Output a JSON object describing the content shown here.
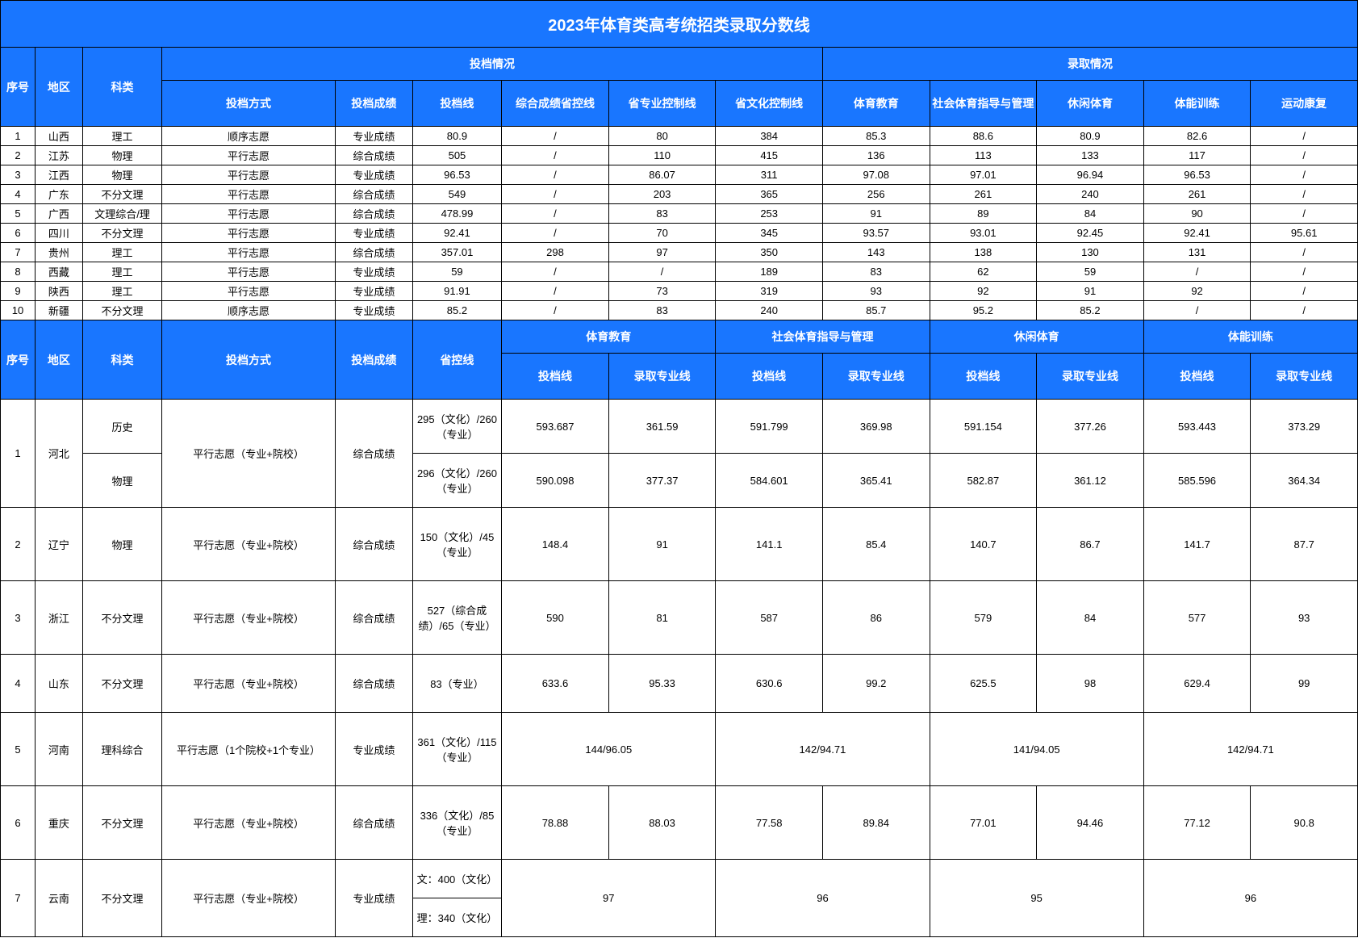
{
  "title": "2023年体育类高考统招类录取分数线",
  "colors": {
    "header_bg": "#1976ff",
    "header_fg": "#ffffff",
    "border": "#000000",
    "cell_bg": "#ffffff",
    "cell_fg": "#000000"
  },
  "section1": {
    "group_left_label": "",
    "group_filing": "投档情况",
    "group_admit": "录取情况",
    "headers": {
      "idx": "序号",
      "region": "地区",
      "subject": "科类",
      "method": "投档方式",
      "score_type": "投档成绩",
      "filing_line": "投档线",
      "comp_ctrl": "综合成绩省控线",
      "pro_ctrl": "省专业控制线",
      "cul_ctrl": "省文化控制线",
      "pe": "体育教育",
      "social": "社会体育指导与管理",
      "leisure": "休闲体育",
      "strength": "体能训练",
      "rehab": "运动康复"
    },
    "rows": [
      {
        "idx": "1",
        "region": "山西",
        "subject": "理工",
        "method": "顺序志愿",
        "score_type": "专业成绩",
        "filing_line": "80.9",
        "comp_ctrl": "/",
        "pro_ctrl": "80",
        "cul_ctrl": "384",
        "pe": "85.3",
        "social": "88.6",
        "leisure": "80.9",
        "strength": "82.6",
        "rehab": "/"
      },
      {
        "idx": "2",
        "region": "江苏",
        "subject": "物理",
        "method": "平行志愿",
        "score_type": "综合成绩",
        "filing_line": "505",
        "comp_ctrl": "/",
        "pro_ctrl": "110",
        "cul_ctrl": "415",
        "pe": "136",
        "social": "113",
        "leisure": "133",
        "strength": "117",
        "rehab": "/"
      },
      {
        "idx": "3",
        "region": "江西",
        "subject": "物理",
        "method": "平行志愿",
        "score_type": "专业成绩",
        "filing_line": "96.53",
        "comp_ctrl": "/",
        "pro_ctrl": "86.07",
        "cul_ctrl": "311",
        "pe": "97.08",
        "social": "97.01",
        "leisure": "96.94",
        "strength": "96.53",
        "rehab": "/"
      },
      {
        "idx": "4",
        "region": "广东",
        "subject": "不分文理",
        "method": "平行志愿",
        "score_type": "综合成绩",
        "filing_line": "549",
        "comp_ctrl": "/",
        "pro_ctrl": "203",
        "cul_ctrl": "365",
        "pe": "256",
        "social": "261",
        "leisure": "240",
        "strength": "261",
        "rehab": "/"
      },
      {
        "idx": "5",
        "region": "广西",
        "subject": "文理综合/理",
        "method": "平行志愿",
        "score_type": "综合成绩",
        "filing_line": "478.99",
        "comp_ctrl": "/",
        "pro_ctrl": "83",
        "cul_ctrl": "253",
        "pe": "91",
        "social": "89",
        "leisure": "84",
        "strength": "90",
        "rehab": "/"
      },
      {
        "idx": "6",
        "region": "四川",
        "subject": "不分文理",
        "method": "平行志愿",
        "score_type": "专业成绩",
        "filing_line": "92.41",
        "comp_ctrl": "/",
        "pro_ctrl": "70",
        "cul_ctrl": "345",
        "pe": "93.57",
        "social": "93.01",
        "leisure": "92.45",
        "strength": "92.41",
        "rehab": "95.61"
      },
      {
        "idx": "7",
        "region": "贵州",
        "subject": "理工",
        "method": "平行志愿",
        "score_type": "综合成绩",
        "filing_line": "357.01",
        "comp_ctrl": "298",
        "pro_ctrl": "97",
        "cul_ctrl": "350",
        "pe": "143",
        "social": "138",
        "leisure": "130",
        "strength": "131",
        "rehab": "/"
      },
      {
        "idx": "8",
        "region": "西藏",
        "subject": "理工",
        "method": "平行志愿",
        "score_type": "专业成绩",
        "filing_line": "59",
        "comp_ctrl": "/",
        "pro_ctrl": "/",
        "cul_ctrl": "189",
        "pe": "83",
        "social": "62",
        "leisure": "59",
        "strength": "/",
        "rehab": "/"
      },
      {
        "idx": "9",
        "region": "陕西",
        "subject": "理工",
        "method": "平行志愿",
        "score_type": "专业成绩",
        "filing_line": "91.91",
        "comp_ctrl": "/",
        "pro_ctrl": "73",
        "cul_ctrl": "319",
        "pe": "93",
        "social": "92",
        "leisure": "91",
        "strength": "92",
        "rehab": "/"
      },
      {
        "idx": "10",
        "region": "新疆",
        "subject": "不分文理",
        "method": "顺序志愿",
        "score_type": "专业成绩",
        "filing_line": "85.2",
        "comp_ctrl": "/",
        "pro_ctrl": "83",
        "cul_ctrl": "240",
        "pe": "85.7",
        "social": "95.2",
        "leisure": "85.2",
        "strength": "/",
        "rehab": "/"
      }
    ]
  },
  "section2": {
    "headers": {
      "idx": "序号",
      "region": "地区",
      "subject": "科类",
      "method": "投档方式",
      "score_type": "投档成绩",
      "ctrl_line": "省控线",
      "pe": "体育教育",
      "social": "社会体育指导与管理",
      "leisure": "休闲体育",
      "strength": "体能训练",
      "sub_filing": "投档线",
      "sub_admit": "录取专业线"
    },
    "rows": {
      "r1a": {
        "idx": "1",
        "region": "河北",
        "subject": "历史",
        "method": "平行志愿（专业+院校）",
        "score_type": "综合成绩",
        "ctrl": "295（文化）/260（专业）",
        "pe_f": "593.687",
        "pe_a": "361.59",
        "so_f": "591.799",
        "so_a": "369.98",
        "le_f": "591.154",
        "le_a": "377.26",
        "st_f": "593.443",
        "st_a": "373.29"
      },
      "r1b": {
        "subject": "物理",
        "ctrl": "296（文化）/260（专业）",
        "pe_f": "590.098",
        "pe_a": "377.37",
        "so_f": "584.601",
        "so_a": "365.41",
        "le_f": "582.87",
        "le_a": "361.12",
        "st_f": "585.596",
        "st_a": "364.34"
      },
      "r2": {
        "idx": "2",
        "region": "辽宁",
        "subject": "物理",
        "method": "平行志愿（专业+院校）",
        "score_type": "综合成绩",
        "ctrl": "150（文化）/45（专业）",
        "pe_f": "148.4",
        "pe_a": "91",
        "so_f": "141.1",
        "so_a": "85.4",
        "le_f": "140.7",
        "le_a": "86.7",
        "st_f": "141.7",
        "st_a": "87.7"
      },
      "r3": {
        "idx": "3",
        "region": "浙江",
        "subject": "不分文理",
        "method": "平行志愿（专业+院校）",
        "score_type": "综合成绩",
        "ctrl": "527（综合成绩）/65（专业）",
        "pe_f": "590",
        "pe_a": "81",
        "so_f": "587",
        "so_a": "86",
        "le_f": "579",
        "le_a": "84",
        "st_f": "577",
        "st_a": "93"
      },
      "r4": {
        "idx": "4",
        "region": "山东",
        "subject": "不分文理",
        "method": "平行志愿（专业+院校）",
        "score_type": "综合成绩",
        "ctrl": "83（专业）",
        "pe_f": "633.6",
        "pe_a": "95.33",
        "so_f": "630.6",
        "so_a": "99.2",
        "le_f": "625.5",
        "le_a": "98",
        "st_f": "629.4",
        "st_a": "99"
      },
      "r5": {
        "idx": "5",
        "region": "河南",
        "subject": "理科综合",
        "method": "平行志愿（1个院校+1个专业）",
        "score_type": "专业成绩",
        "ctrl": "361（文化）/115（专业）",
        "pe": "144/96.05",
        "so": "142/94.71",
        "le": "141/94.05",
        "st": "142/94.71"
      },
      "r6": {
        "idx": "6",
        "region": "重庆",
        "subject": "不分文理",
        "method": "平行志愿（专业+院校）",
        "score_type": "综合成绩",
        "ctrl": "336（文化）/85（专业）",
        "pe_f": "78.88",
        "pe_a": "88.03",
        "so_f": "77.58",
        "so_a": "89.84",
        "le_f": "77.01",
        "le_a": "94.46",
        "st_f": "77.12",
        "st_a": "90.8"
      },
      "r7a": {
        "idx": "7",
        "region": "云南",
        "subject": "不分文理",
        "method": "平行志愿（专业+院校）",
        "score_type": "专业成绩",
        "ctrl": "文：400（文化）",
        "pe": "97",
        "so": "96",
        "le": "95",
        "st": "96"
      },
      "r7b": {
        "ctrl": "理：340（文化）"
      }
    }
  }
}
